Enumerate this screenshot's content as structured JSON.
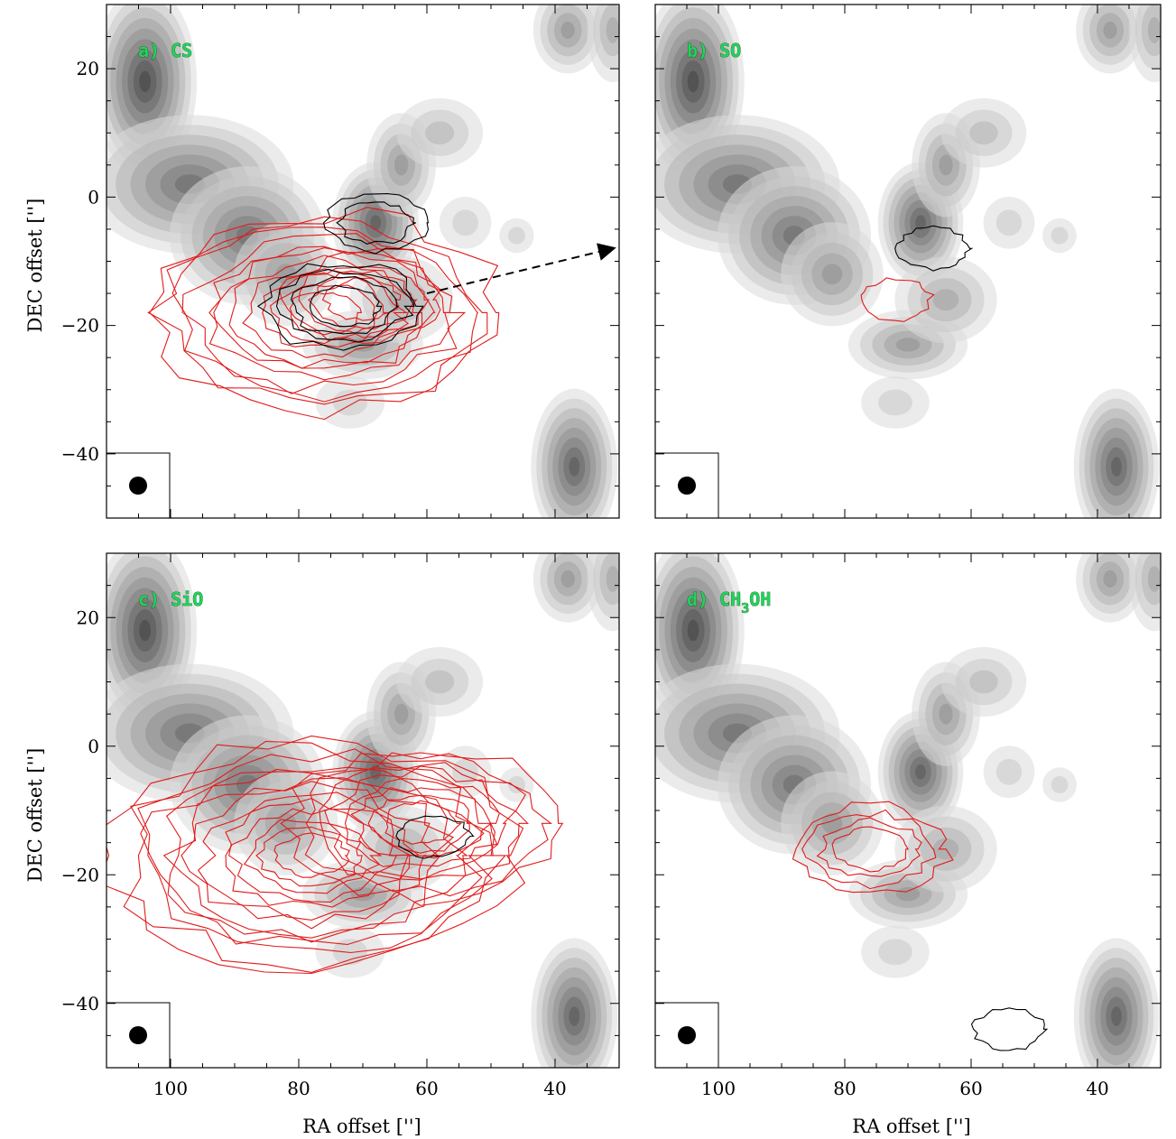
{
  "chart_data": [
    {
      "type": "contour",
      "panel": "a",
      "label": "a) CS",
      "xlabel": "",
      "ylabel": "DEC offset ['']",
      "xlim": [
        110,
        30
      ],
      "ylim": [
        -50,
        30
      ],
      "x_ticks": [
        100,
        80,
        60,
        40
      ],
      "y_ticks": [
        20,
        0,
        -20,
        -40
      ],
      "x_tick_labels": [],
      "y_tick_labels": [
        "20",
        "0",
        "−20",
        "−40"
      ],
      "beam_marker": true,
      "red_contours": {
        "peaks": [
          {
            "x": 76,
            "y": -18,
            "levels": 11
          },
          {
            "x": 70,
            "y": -16,
            "levels": 4
          }
        ]
      },
      "black_contours": {
        "peaks": [
          {
            "x": 73,
            "y": -17,
            "levels": 4
          },
          {
            "x": 68,
            "y": -4,
            "levels": 2
          }
        ]
      },
      "arrow": {
        "from": [
          60,
          -15
        ],
        "to": [
          31,
          -8
        ]
      }
    },
    {
      "type": "contour",
      "panel": "b",
      "label": "b) SO",
      "xlabel": "",
      "ylabel": "",
      "xlim": [
        110,
        30
      ],
      "ylim": [
        -50,
        30
      ],
      "x_ticks": [
        100,
        80,
        60,
        40
      ],
      "y_ticks": [
        20,
        0,
        -20,
        -40
      ],
      "x_tick_labels": [],
      "y_tick_labels": [],
      "beam_marker": true,
      "red_contours": {
        "peaks": [
          {
            "x": 72,
            "y": -16,
            "levels": 1
          }
        ]
      },
      "black_contours": {
        "peaks": [
          {
            "x": 66,
            "y": -8,
            "levels": 1
          }
        ]
      }
    },
    {
      "type": "contour",
      "panel": "c",
      "label": "c) SiO",
      "xlabel": "",
      "ylabel": "DEC offset ['']",
      "xlim": [
        110,
        30
      ],
      "ylim": [
        -50,
        30
      ],
      "x_ticks": [
        100,
        80,
        60,
        40
      ],
      "y_ticks": [
        20,
        0,
        -20,
        -40
      ],
      "x_tick_labels": [],
      "y_tick_labels": [
        "20",
        "0",
        "−20",
        "−40"
      ],
      "beam_marker": true,
      "red_contours": {
        "peaks": [
          {
            "x": 78,
            "y": -17,
            "levels": 13
          },
          {
            "x": 61,
            "y": -12,
            "levels": 8
          }
        ]
      },
      "black_contours": {
        "peaks": [
          {
            "x": 59,
            "y": -14,
            "levels": 1
          }
        ]
      }
    },
    {
      "type": "contour",
      "panel": "d",
      "label": "d) CH3OH",
      "label_base": "d) CH",
      "label_sub": "3",
      "label_tail": "OH",
      "xlabel": "RA offset ['']",
      "ylabel": "",
      "xlim": [
        110,
        30
      ],
      "ylim": [
        -50,
        30
      ],
      "x_ticks": [
        100,
        80,
        60,
        40
      ],
      "y_ticks": [
        20,
        0,
        -20,
        -40
      ],
      "x_tick_labels": [
        "100",
        "80",
        "60",
        "40"
      ],
      "y_tick_labels": [],
      "beam_marker": true,
      "red_contours": {
        "peaks": [
          {
            "x": 76,
            "y": -16,
            "levels": 4
          }
        ]
      },
      "black_contours": {
        "peaks": [
          {
            "x": 54,
            "y": -44,
            "levels": 1
          }
        ]
      }
    }
  ],
  "bottom_left_xlabel": "RA offset ['']",
  "bottom_left_x_tick_labels": [
    "100",
    "80",
    "60",
    "40"
  ],
  "background": {
    "description_units": "grayscale filled contours of continuum emission",
    "blobs": [
      {
        "x": 104,
        "y": 18,
        "sx": 6,
        "sy": 11,
        "a": 0.95
      },
      {
        "x": 97,
        "y": 2,
        "sx": 12,
        "sy": 8,
        "a": 0.8
      },
      {
        "x": 88,
        "y": -6,
        "sx": 9,
        "sy": 8,
        "a": 0.75
      },
      {
        "x": 82,
        "y": -12,
        "sx": 6,
        "sy": 6,
        "a": 0.55
      },
      {
        "x": 68,
        "y": -4,
        "sx": 5,
        "sy": 7,
        "a": 0.9
      },
      {
        "x": 64,
        "y": 5,
        "sx": 4,
        "sy": 6,
        "a": 0.5
      },
      {
        "x": 58,
        "y": 10,
        "sx": 5,
        "sy": 4,
        "a": 0.35
      },
      {
        "x": 70,
        "y": -23,
        "sx": 7,
        "sy": 4,
        "a": 0.55
      },
      {
        "x": 64,
        "y": -16,
        "sx": 6,
        "sy": 5,
        "a": 0.45
      },
      {
        "x": 72,
        "y": -32,
        "sx": 4,
        "sy": 3,
        "a": 0.18
      },
      {
        "x": 37,
        "y": -42,
        "sx": 5,
        "sy": 9,
        "a": 0.85
      },
      {
        "x": 38,
        "y": 26,
        "sx": 4,
        "sy": 5,
        "a": 0.55
      },
      {
        "x": 31,
        "y": 26,
        "sx": 3,
        "sy": 6,
        "a": 0.45
      },
      {
        "x": 46,
        "y": -6,
        "sx": 2,
        "sy": 2,
        "a": 0.18
      },
      {
        "x": 54,
        "y": -4,
        "sx": 3,
        "sy": 3,
        "a": 0.25
      }
    ]
  },
  "colors": {
    "red_contour": "#e11b1b",
    "black_contour": "#000000",
    "panel_label": "#22d45a",
    "gray_min": "#f4f4f4",
    "gray_max": "#4a4a4a"
  }
}
